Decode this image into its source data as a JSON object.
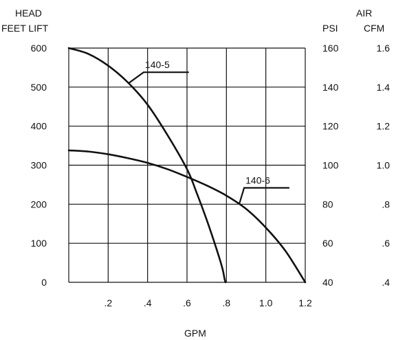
{
  "chart_data": {
    "type": "line",
    "title": "",
    "left_axis": {
      "label_line1": "HEAD",
      "label_line2": "FEET LIFT",
      "ylim": [
        0,
        600
      ],
      "ticks": [
        "0",
        "100",
        "200",
        "300",
        "400",
        "500",
        "600"
      ]
    },
    "right_axis": {
      "header": "AIR",
      "psi_label": "PSI",
      "cfm_label": "CFM",
      "psi_ticks": [
        "40",
        "60",
        "80",
        "100",
        "120",
        "140",
        "160"
      ],
      "cfm_ticks": [
        ".4",
        ".6",
        ".8",
        "1.0",
        "1.2",
        "1.4",
        "1.6"
      ]
    },
    "x_axis": {
      "label": "GPM",
      "xlim": [
        0,
        1.2
      ],
      "ticks": [
        {
          "value": 0.2,
          "label": ".2"
        },
        {
          "value": 0.4,
          "label": ".4"
        },
        {
          "value": 0.6,
          "label": ".6"
        },
        {
          "value": 0.8,
          "label": ".8"
        },
        {
          "value": 1.0,
          "label": "1.0"
        },
        {
          "value": 1.2,
          "label": "1.2"
        }
      ]
    },
    "grid": true,
    "series": [
      {
        "name": "140-5",
        "x": [
          0,
          0.1,
          0.2,
          0.3,
          0.4,
          0.5,
          0.6,
          0.65,
          0.7,
          0.75,
          0.78,
          0.79,
          0.795
        ],
        "y": [
          600,
          585,
          555,
          512,
          455,
          378,
          290,
          228,
          160,
          85,
          35,
          10,
          0
        ]
      },
      {
        "name": "140-6",
        "x": [
          0,
          0.1,
          0.2,
          0.3,
          0.4,
          0.5,
          0.6,
          0.7,
          0.8,
          0.9,
          1.0,
          1.1,
          1.2
        ],
        "y": [
          338,
          335,
          328,
          318,
          306,
          290,
          270,
          248,
          222,
          188,
          140,
          80,
          0
        ]
      }
    ],
    "annotations": [
      {
        "text": "140-5",
        "series": "140-5",
        "at_y": 510,
        "label_x": 0.38,
        "label_y": 538
      },
      {
        "text": "140-6",
        "series": "140-6",
        "at_y": 200,
        "label_x": 0.89,
        "label_y": 242
      }
    ]
  }
}
